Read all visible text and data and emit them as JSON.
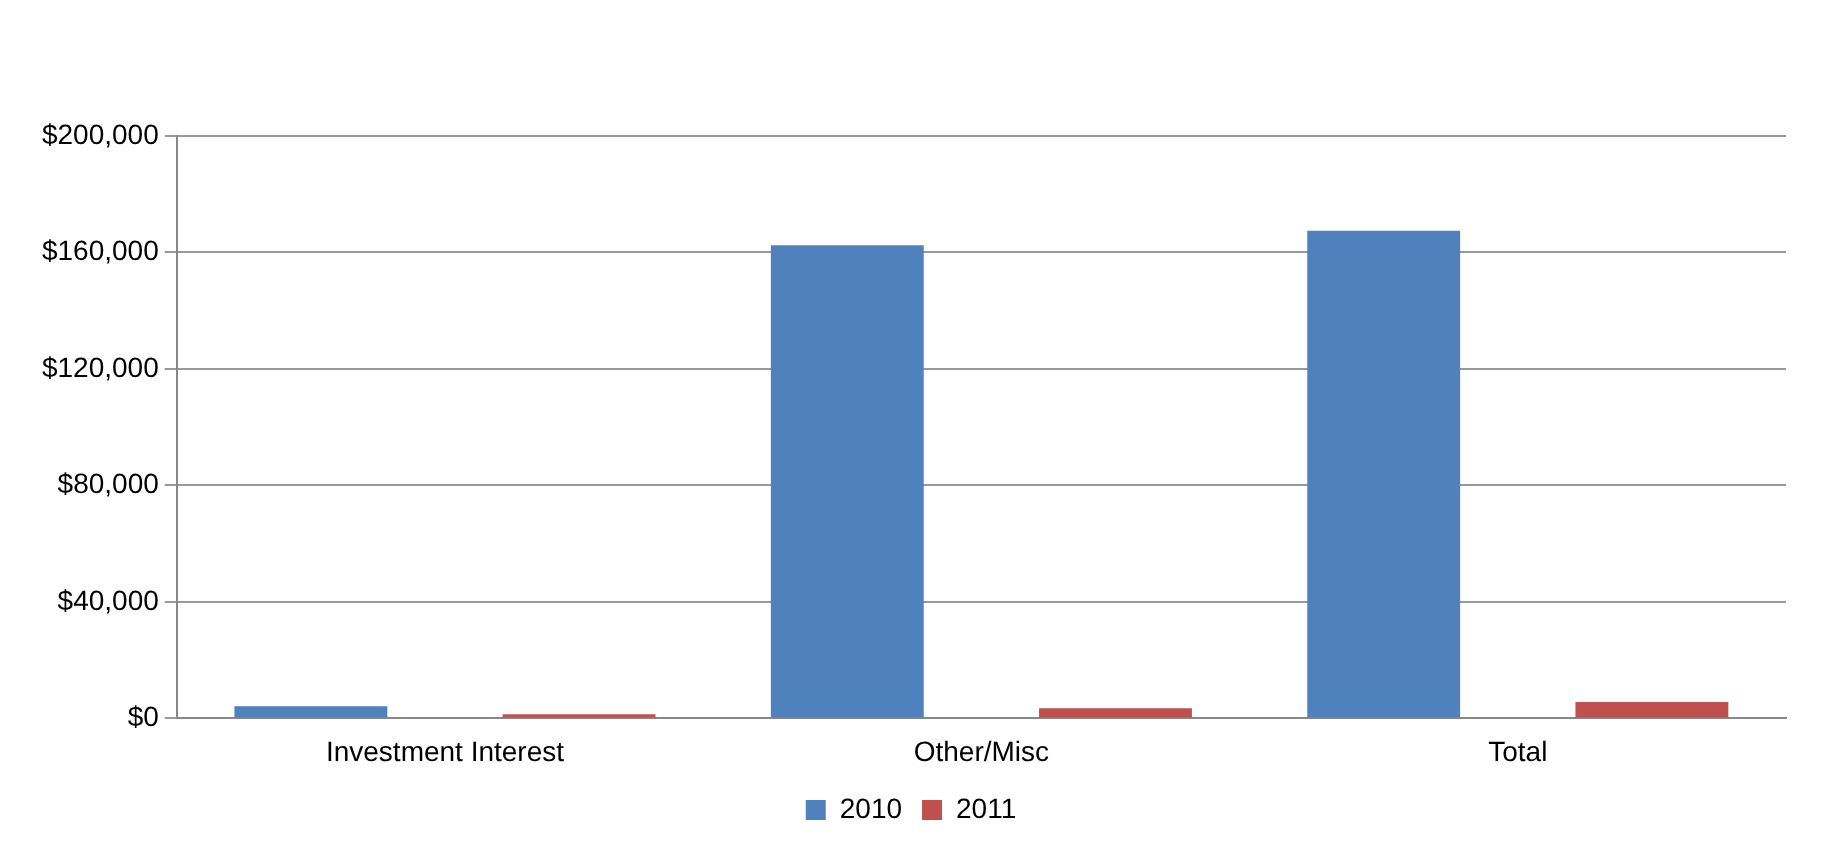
{
  "chart_data": {
    "type": "bar",
    "categories": [
      "Investment Interest",
      "Other/Misc",
      "Total"
    ],
    "series": [
      {
        "name": "2010",
        "color": "#4f81bd",
        "values": [
          4200,
          162500,
          167500
        ]
      },
      {
        "name": "2011",
        "color": "#c0504d",
        "values": [
          1400,
          3500,
          5600
        ]
      }
    ],
    "ylim": [
      0,
      200000
    ],
    "yticks": [
      {
        "value": 0,
        "label": "$0"
      },
      {
        "value": 40000,
        "label": "$40,000"
      },
      {
        "value": 80000,
        "label": "$80,000"
      },
      {
        "value": 120000,
        "label": "$120,000"
      },
      {
        "value": 160000,
        "label": "$160,000"
      },
      {
        "value": 200000,
        "label": "$200,000"
      }
    ],
    "grid": "y",
    "legend": "bottom"
  }
}
